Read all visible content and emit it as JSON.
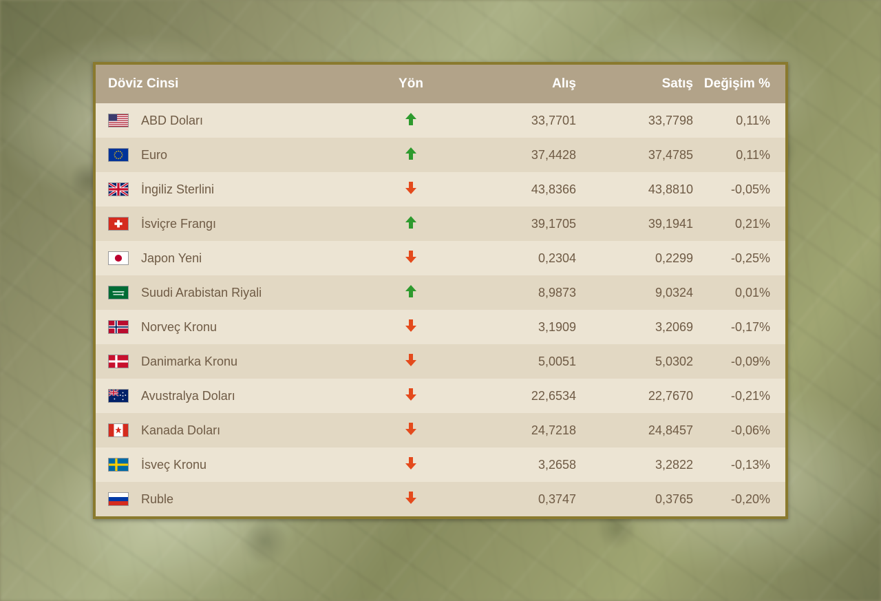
{
  "colors": {
    "panel_border": "#8a7a2e",
    "header_bg": "#b2a389",
    "header_text": "#ffffff",
    "row_odd": "#ece4d3",
    "row_even": "#e2d8c3",
    "text": "#6f5b45",
    "up": "#2e9a2e",
    "down": "#e44a1c"
  },
  "table": {
    "columns": {
      "name": "Döviz Cinsi",
      "dir": "Yön",
      "buy": "Alış",
      "sell": "Satış",
      "change": "Değişim %"
    },
    "rows": [
      {
        "flag": "us",
        "name": "ABD Doları",
        "dir": "up",
        "buy": "33,7701",
        "sell": "33,7798",
        "change": "0,11%"
      },
      {
        "flag": "eu",
        "name": "Euro",
        "dir": "up",
        "buy": "37,4428",
        "sell": "37,4785",
        "change": "0,11%"
      },
      {
        "flag": "gb",
        "name": "İngiliz Sterlini",
        "dir": "down",
        "buy": "43,8366",
        "sell": "43,8810",
        "change": "-0,05%"
      },
      {
        "flag": "ch",
        "name": "İsviçre Frangı",
        "dir": "up",
        "buy": "39,1705",
        "sell": "39,1941",
        "change": "0,21%"
      },
      {
        "flag": "jp",
        "name": "Japon Yeni",
        "dir": "down",
        "buy": "0,2304",
        "sell": "0,2299",
        "change": "-0,25%"
      },
      {
        "flag": "sa",
        "name": "Suudi Arabistan Riyali",
        "dir": "up",
        "buy": "8,9873",
        "sell": "9,0324",
        "change": "0,01%"
      },
      {
        "flag": "no",
        "name": "Norveç Kronu",
        "dir": "down",
        "buy": "3,1909",
        "sell": "3,2069",
        "change": "-0,17%"
      },
      {
        "flag": "dk",
        "name": "Danimarka Kronu",
        "dir": "down",
        "buy": "5,0051",
        "sell": "5,0302",
        "change": "-0,09%"
      },
      {
        "flag": "au",
        "name": "Avustralya Doları",
        "dir": "down",
        "buy": "22,6534",
        "sell": "22,7670",
        "change": "-0,21%"
      },
      {
        "flag": "ca",
        "name": "Kanada Doları",
        "dir": "down",
        "buy": "24,7218",
        "sell": "24,8457",
        "change": "-0,06%"
      },
      {
        "flag": "se",
        "name": "İsveç Kronu",
        "dir": "down",
        "buy": "3,2658",
        "sell": "3,2822",
        "change": "-0,13%"
      },
      {
        "flag": "ru",
        "name": "Ruble",
        "dir": "down",
        "buy": "0,3747",
        "sell": "0,3765",
        "change": "-0,20%"
      }
    ]
  }
}
